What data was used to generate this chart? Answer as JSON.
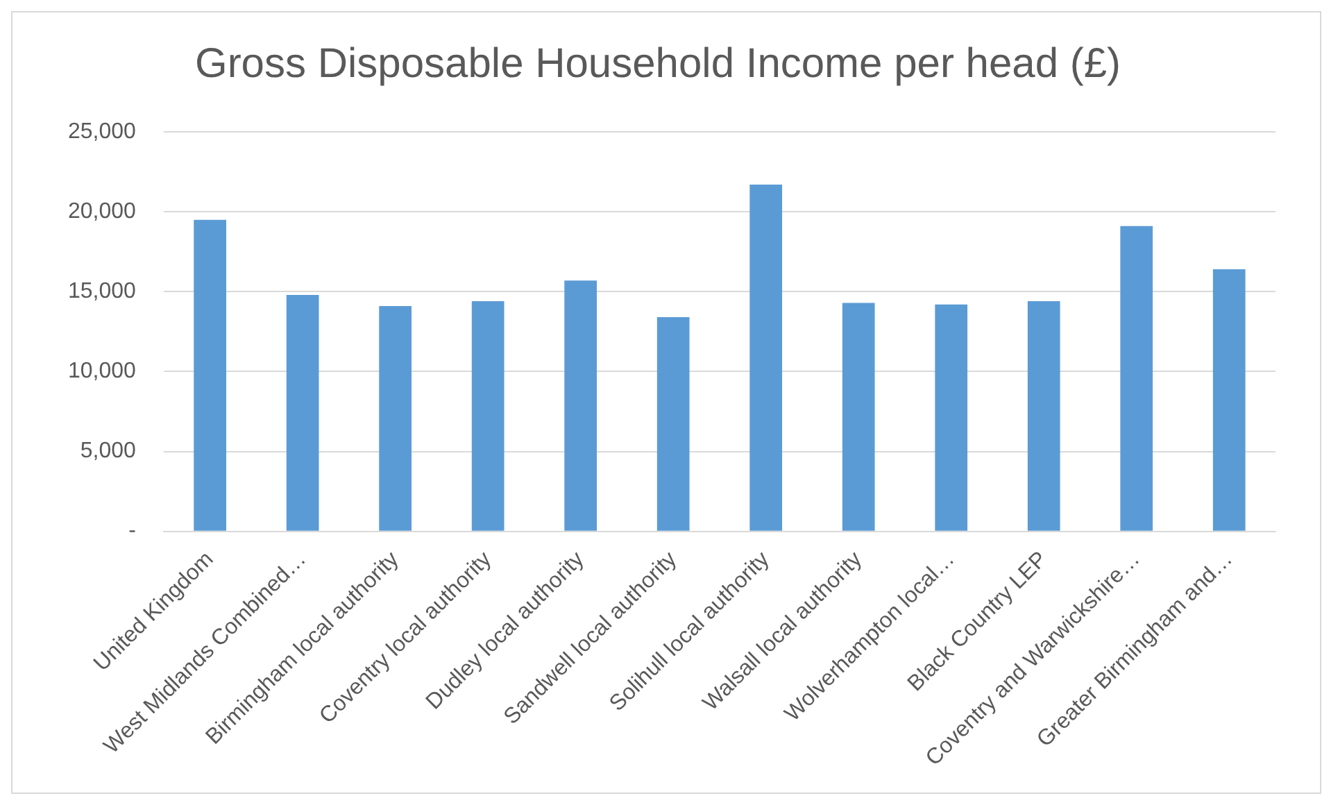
{
  "chart_data": {
    "type": "bar",
    "title": "Gross Disposable Household Income per head (£)",
    "categories": [
      "United Kingdom",
      "West Midlands Combined…",
      "Birmingham local authority",
      "Coventry local authority",
      "Dudley local authority",
      "Sandwell local authority",
      "Solihull local authority",
      "Walsall local authority",
      "Wolverhampton local…",
      "Black Country LEP",
      "Coventry and Warwickshire…",
      "Greater Birmingham and…"
    ],
    "values": [
      19500,
      14800,
      14100,
      14400,
      15700,
      13400,
      21700,
      14300,
      14200,
      14400,
      19100,
      16400
    ],
    "color": "#5b9bd5",
    "ylim": [
      0,
      25000
    ],
    "yticks": [
      {
        "value": 0,
        "label": "-"
      },
      {
        "value": 5000,
        "label": "5,000"
      },
      {
        "value": 10000,
        "label": "10,000"
      },
      {
        "value": 15000,
        "label": "15,000"
      },
      {
        "value": 20000,
        "label": "20,000"
      },
      {
        "value": 25000,
        "label": "25,000"
      }
    ],
    "grid": "y"
  }
}
